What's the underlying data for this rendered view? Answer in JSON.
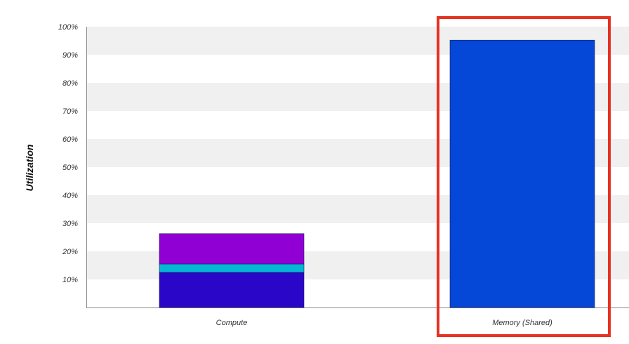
{
  "chart_data": {
    "type": "bar",
    "stacked": true,
    "title": "",
    "xlabel": "",
    "ylabel": "Utilization",
    "ylim": [
      0,
      100
    ],
    "yticks": [
      "10%",
      "20%",
      "30%",
      "40%",
      "50%",
      "60%",
      "70%",
      "80%",
      "90%",
      "100%"
    ],
    "grid": "alternating horizontal bands",
    "categories": [
      "Compute",
      "Memory (Shared)"
    ],
    "series": [
      {
        "color": "#2a06c8",
        "values": [
          12.5,
          0
        ]
      },
      {
        "color": "#06b6d6",
        "values": [
          3.0,
          0
        ]
      },
      {
        "color": "#9000d4",
        "values": [
          10.8,
          0
        ]
      },
      {
        "color": "#0547d6",
        "values": [
          0,
          95.2
        ]
      }
    ],
    "highlight": {
      "category": "Memory (Shared)",
      "color": "#e53222"
    }
  }
}
